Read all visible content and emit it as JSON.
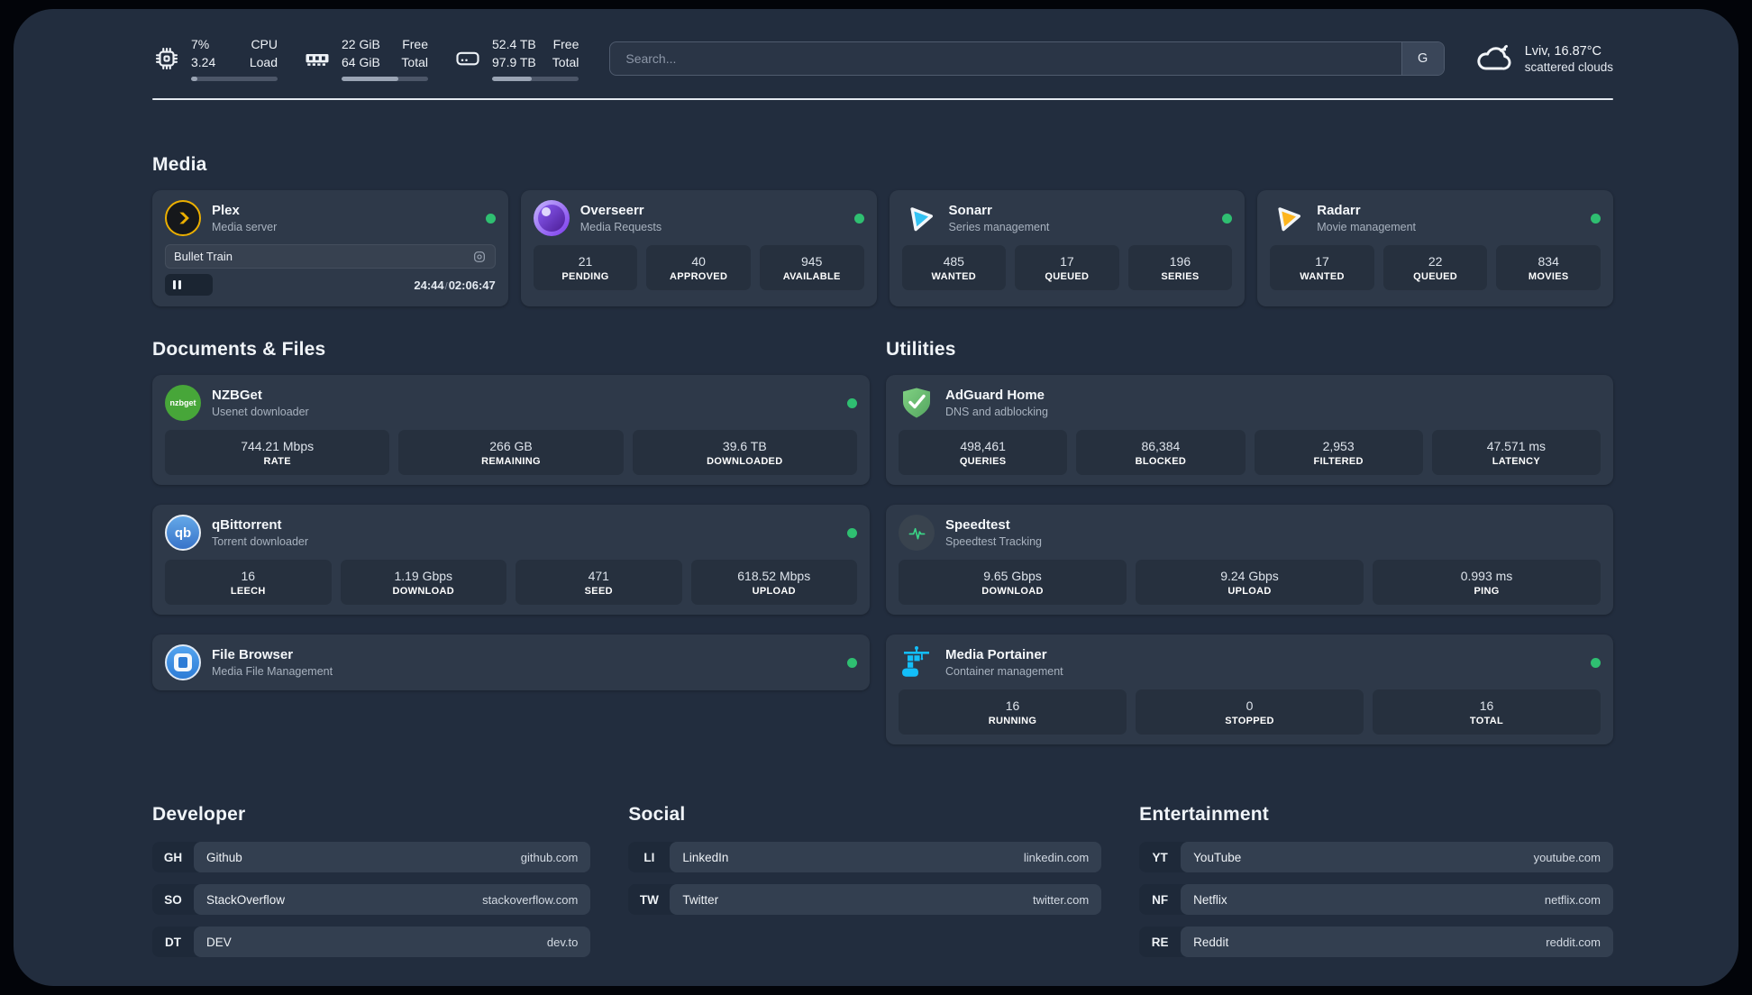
{
  "colors": {
    "panel_bg": "#222d3e",
    "card_bg": "#2e3949",
    "tile_bg": "#26303e",
    "online_dot": "#2fbf71",
    "plex_accent": "#ebaf00",
    "sonarr_accent": "#33c2f2",
    "radarr_accent": "#fdb51e",
    "nzbget_accent": "#47a639",
    "qbittorrent_accent": "#4a90d9",
    "adguard_accent": "#68b966",
    "speedtest_accent": "#3ad687",
    "portainer_accent": "#13bef9"
  },
  "header": {
    "system_stats": [
      {
        "icon": "cpu-icon",
        "value_line1": "7%",
        "value_line2": "3.24",
        "label_line1": "CPU",
        "label_line2": "Load",
        "progress_percent": 7
      },
      {
        "icon": "ram-icon",
        "value_line1": "22 GiB",
        "value_line2": "64 GiB",
        "label_line1": "Free",
        "label_line2": "Total",
        "progress_percent": 66
      },
      {
        "icon": "disk-icon",
        "value_line1": "52.4 TB",
        "value_line2": "97.9 TB",
        "label_line1": "Free",
        "label_line2": "Total",
        "progress_percent": 46
      }
    ],
    "search": {
      "placeholder": "Search...",
      "engine_button": "G"
    },
    "weather": {
      "icon": "cloud-icon",
      "headline": "Lviv, 16.87°C",
      "condition": "scattered clouds"
    }
  },
  "sections": {
    "media": {
      "title": "Media",
      "apps": [
        {
          "name": "Plex",
          "subtitle": "Media server",
          "icon": "plex-icon",
          "online": true,
          "player": {
            "title": "Bullet Train",
            "elapsed": "24:44",
            "separator": "/",
            "total": "02:06:47",
            "progress_percent": 20
          }
        },
        {
          "name": "Overseerr",
          "subtitle": "Media Requests",
          "icon": "overseerr-icon",
          "online": true,
          "tiles": [
            {
              "value": "21",
              "label": "PENDING"
            },
            {
              "value": "40",
              "label": "APPROVED"
            },
            {
              "value": "945",
              "label": "AVAILABLE"
            }
          ]
        },
        {
          "name": "Sonarr",
          "subtitle": "Series management",
          "icon": "sonarr-icon",
          "online": true,
          "tiles": [
            {
              "value": "485",
              "label": "WANTED"
            },
            {
              "value": "17",
              "label": "QUEUED"
            },
            {
              "value": "196",
              "label": "SERIES"
            }
          ]
        },
        {
          "name": "Radarr",
          "subtitle": "Movie management",
          "icon": "radarr-icon",
          "online": true,
          "tiles": [
            {
              "value": "17",
              "label": "WANTED"
            },
            {
              "value": "22",
              "label": "QUEUED"
            },
            {
              "value": "834",
              "label": "MOVIES"
            }
          ]
        }
      ]
    },
    "documents_files": {
      "title": "Documents & Files",
      "apps": [
        {
          "name": "NZBGet",
          "subtitle": "Usenet downloader",
          "icon": "nzbget-icon",
          "online": true,
          "tiles": [
            {
              "value": "744.21 Mbps",
              "label": "RATE"
            },
            {
              "value": "266 GB",
              "label": "REMAINING"
            },
            {
              "value": "39.6 TB",
              "label": "DOWNLOADED"
            }
          ]
        },
        {
          "name": "qBittorrent",
          "subtitle": "Torrent downloader",
          "icon": "qbittorrent-icon",
          "online": true,
          "tiles": [
            {
              "value": "16",
              "label": "LEECH"
            },
            {
              "value": "1.19 Gbps",
              "label": "DOWNLOAD"
            },
            {
              "value": "471",
              "label": "SEED"
            },
            {
              "value": "618.52 Mbps",
              "label": "UPLOAD"
            }
          ]
        },
        {
          "name": "File Browser",
          "subtitle": "Media File Management",
          "icon": "filebrowser-icon",
          "online": true
        }
      ]
    },
    "utilities": {
      "title": "Utilities",
      "apps": [
        {
          "name": "AdGuard Home",
          "subtitle": "DNS and adblocking",
          "icon": "adguard-icon",
          "online": false,
          "tiles": [
            {
              "value": "498,461",
              "label": "QUERIES"
            },
            {
              "value": "86,384",
              "label": "BLOCKED"
            },
            {
              "value": "2,953",
              "label": "FILTERED"
            },
            {
              "value": "47.571 ms",
              "label": "LATENCY"
            }
          ]
        },
        {
          "name": "Speedtest",
          "subtitle": "Speedtest Tracking",
          "icon": "speedtest-icon",
          "online": false,
          "tiles": [
            {
              "value": "9.65 Gbps",
              "label": "DOWNLOAD"
            },
            {
              "value": "9.24 Gbps",
              "label": "UPLOAD"
            },
            {
              "value": "0.993 ms",
              "label": "PING"
            }
          ]
        },
        {
          "name": "Media Portainer",
          "subtitle": "Container management",
          "icon": "portainer-icon",
          "online": true,
          "tiles": [
            {
              "value": "16",
              "label": "RUNNING"
            },
            {
              "value": "0",
              "label": "STOPPED"
            },
            {
              "value": "16",
              "label": "TOTAL"
            }
          ]
        }
      ]
    },
    "bookmarks": [
      {
        "title": "Developer",
        "links": [
          {
            "abbr": "GH",
            "name": "Github",
            "url": "github.com"
          },
          {
            "abbr": "SO",
            "name": "StackOverflow",
            "url": "stackoverflow.com"
          },
          {
            "abbr": "DT",
            "name": "DEV",
            "url": "dev.to"
          }
        ]
      },
      {
        "title": "Social",
        "links": [
          {
            "abbr": "LI",
            "name": "LinkedIn",
            "url": "linkedin.com"
          },
          {
            "abbr": "TW",
            "name": "Twitter",
            "url": "twitter.com"
          }
        ]
      },
      {
        "title": "Entertainment",
        "links": [
          {
            "abbr": "YT",
            "name": "YouTube",
            "url": "youtube.com"
          },
          {
            "abbr": "NF",
            "name": "Netflix",
            "url": "netflix.com"
          },
          {
            "abbr": "RE",
            "name": "Reddit",
            "url": "reddit.com"
          }
        ]
      }
    ]
  }
}
